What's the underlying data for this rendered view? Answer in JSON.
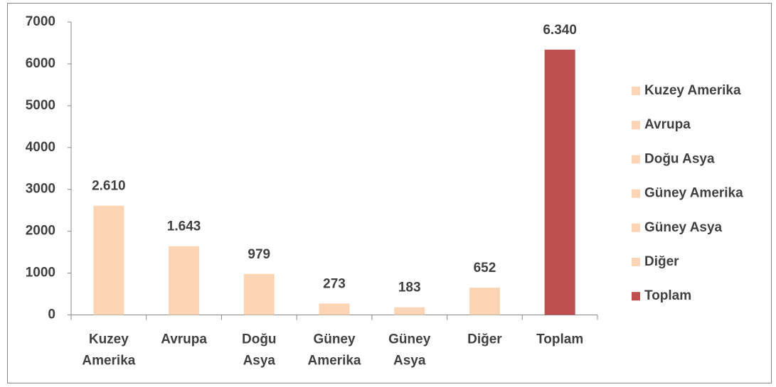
{
  "chart_data": {
    "type": "bar",
    "categories": [
      "Kuzey Amerika",
      "Avrupa",
      "Doğu Asya",
      "Güney Amerika",
      "Güney Asya",
      "Diğer",
      "Toplam"
    ],
    "values": [
      2610,
      1643,
      979,
      273,
      183,
      652,
      6340
    ],
    "value_labels": [
      "2.610",
      "1.643",
      "979",
      "273",
      "183",
      "652",
      "6.340"
    ],
    "colors": [
      "#fbd5b5",
      "#fbd5b5",
      "#fbd5b5",
      "#fbd5b5",
      "#fbd5b5",
      "#fbd5b5",
      "#c0504d"
    ],
    "ylim": [
      0,
      7000
    ],
    "yticks": [
      0,
      1000,
      2000,
      3000,
      4000,
      5000,
      6000,
      7000
    ],
    "legend": "right"
  }
}
